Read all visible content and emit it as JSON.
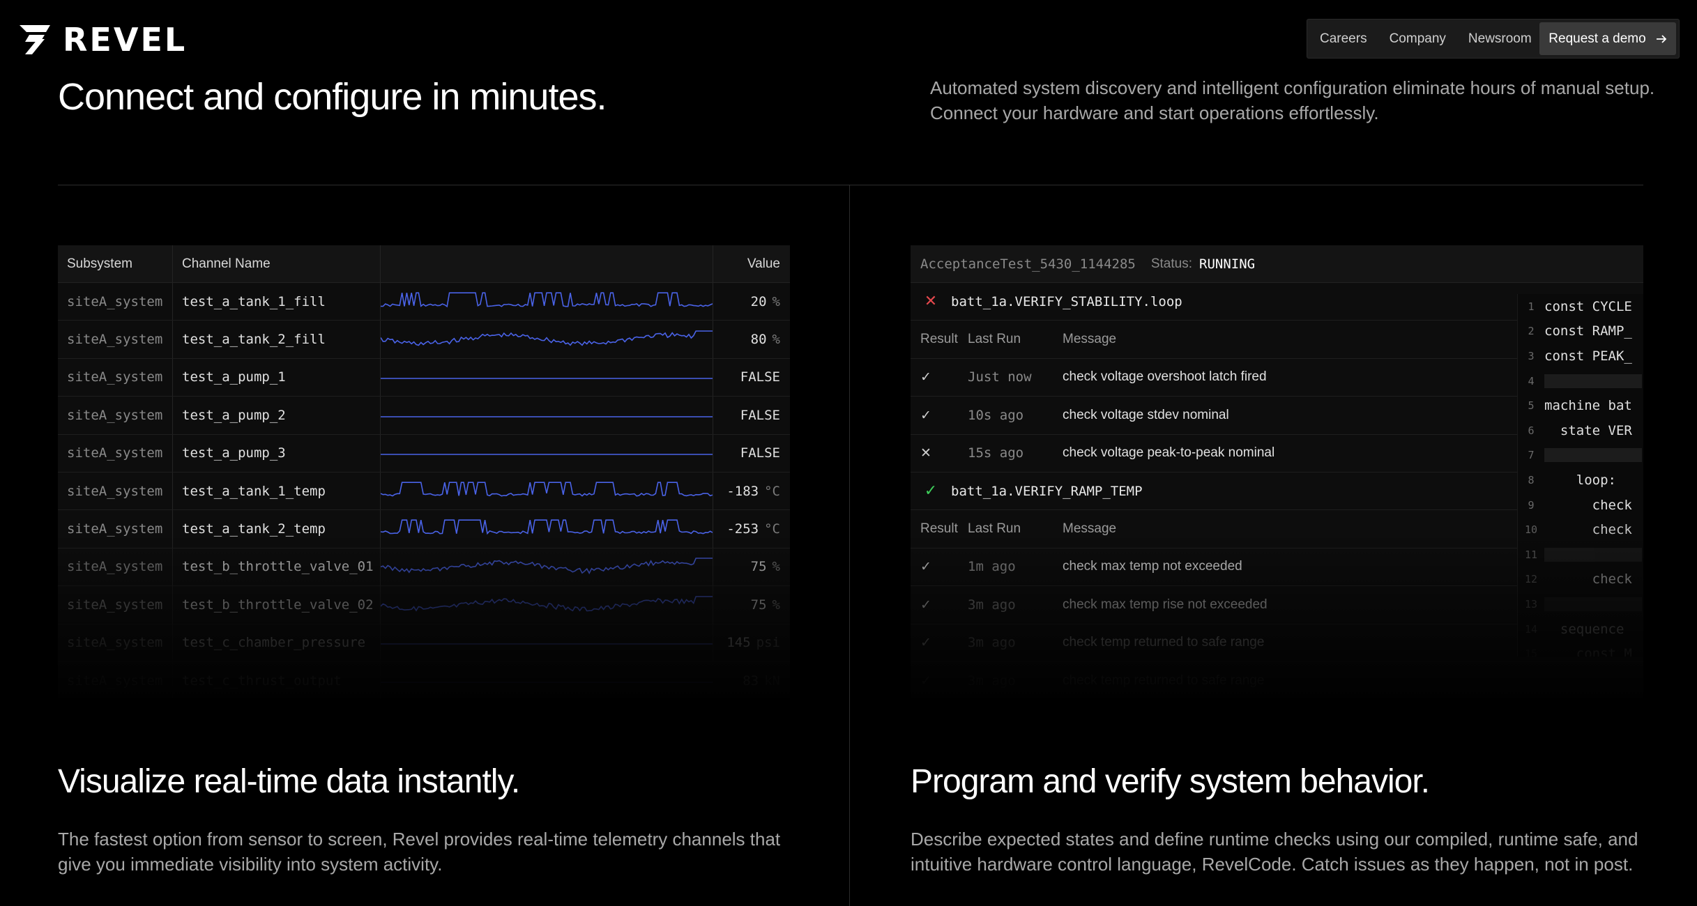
{
  "brand": {
    "name": "REVEL"
  },
  "nav": {
    "links": [
      "Careers",
      "Company",
      "Newsroom"
    ],
    "cta_label": "Request a demo"
  },
  "hero": {
    "title": "Connect and configure in minutes.",
    "description": "Automated system discovery and intelligent configuration eliminate hours of manual setup. Connect your hardware and start operations effortlessly."
  },
  "telemetry": {
    "columns": {
      "subsystem": "Subsystem",
      "channel": "Channel Name",
      "value": "Value"
    },
    "rows": [
      {
        "subsystem": "siteA_system",
        "channel": "test_a_tank_1_fill",
        "value": "20",
        "unit": "%"
      },
      {
        "subsystem": "siteA_system",
        "channel": "test_a_tank_2_fill",
        "value": "80",
        "unit": "%"
      },
      {
        "subsystem": "siteA_system",
        "channel": "test_a_pump_1",
        "value": "FALSE",
        "unit": ""
      },
      {
        "subsystem": "siteA_system",
        "channel": "test_a_pump_2",
        "value": "FALSE",
        "unit": ""
      },
      {
        "subsystem": "siteA_system",
        "channel": "test_a_pump_3",
        "value": "FALSE",
        "unit": ""
      },
      {
        "subsystem": "siteA_system",
        "channel": "test_a_tank_1_temp",
        "value": "-183",
        "unit": "°C"
      },
      {
        "subsystem": "siteA_system",
        "channel": "test_a_tank_2_temp",
        "value": "-253",
        "unit": "°C"
      },
      {
        "subsystem": "siteA_system",
        "channel": "test_b_throttle_valve_01",
        "value": "75",
        "unit": "%"
      },
      {
        "subsystem": "siteA_system",
        "channel": "test_b_throttle_valve_02",
        "value": "75",
        "unit": "%"
      },
      {
        "subsystem": "siteA_system",
        "channel": "test_c_chamber_pressure",
        "value": "145",
        "unit": "psi"
      },
      {
        "subsystem": "siteA_system",
        "channel": "test_c_thrust_output",
        "value": "83",
        "unit": "kN"
      }
    ]
  },
  "test_panel": {
    "test_name": "AcceptanceTest_5430_1144285",
    "status_label": "Status:",
    "status": "RUNNING",
    "column_labels": {
      "result": "Result",
      "last_run": "Last Run",
      "message": "Message"
    },
    "groups": [
      {
        "name": "batt_1a.VERIFY_STABILITY.loop",
        "icon": "x-icon",
        "icon_color": "#e5484d",
        "rows": [
          {
            "result": "pass",
            "last_run": "Just now",
            "message": "check voltage overshoot latch fired"
          },
          {
            "result": "pass",
            "last_run": "10s ago",
            "message": "check voltage stdev nominal"
          },
          {
            "result": "fail",
            "last_run": "15s ago",
            "message": "check voltage peak-to-peak nominal"
          }
        ]
      },
      {
        "name": "batt_1a.VERIFY_RAMP_TEMP",
        "icon": "check-icon",
        "icon_color": "#3ecf5a",
        "rows": [
          {
            "result": "pass",
            "last_run": "1m ago",
            "message": "check max temp not exceeded"
          },
          {
            "result": "pass",
            "last_run": "3m ago",
            "message": "check max temp rise not exceeded"
          },
          {
            "result": "pass",
            "last_run": "3m ago",
            "message": "check temp returned to safe range"
          },
          {
            "result": "pass",
            "last_run": "3m ago",
            "message": "check temp returned to safe range"
          }
        ]
      }
    ],
    "code_lines": [
      {
        "n": "1",
        "text": "const CYCLE"
      },
      {
        "n": "2",
        "text": "const RAMP_"
      },
      {
        "n": "3",
        "text": "const PEAK_"
      },
      {
        "n": "4",
        "text": ""
      },
      {
        "n": "5",
        "text": "machine bat"
      },
      {
        "n": "6",
        "text": "  state VER"
      },
      {
        "n": "7",
        "text": ""
      },
      {
        "n": "8",
        "text": "    loop:"
      },
      {
        "n": "9",
        "text": "      check"
      },
      {
        "n": "10",
        "text": "      check"
      },
      {
        "n": "11",
        "text": ""
      },
      {
        "n": "12",
        "text": "      check"
      },
      {
        "n": "13",
        "text": ""
      },
      {
        "n": "14",
        "text": "  sequence"
      },
      {
        "n": "15",
        "text": "    const M"
      }
    ]
  },
  "sections": {
    "visualize": {
      "title": "Visualize real-time data instantly.",
      "description": "The fastest option from sensor to screen, Revel provides real-time telemetry channels that give you immediate visibility into system activity."
    },
    "program": {
      "title": "Program and verify system behavior.",
      "description": "Describe expected states and define runtime checks using our compiled, runtime safe, and intuitive hardware control language, RevelCode. Catch issues as they happen, not in post."
    }
  },
  "colors": {
    "background": "#000000",
    "spark_line": "#4a63e8",
    "panel": "#0d0d0d",
    "pass": "#3ecf5a",
    "fail": "#e5484d"
  }
}
